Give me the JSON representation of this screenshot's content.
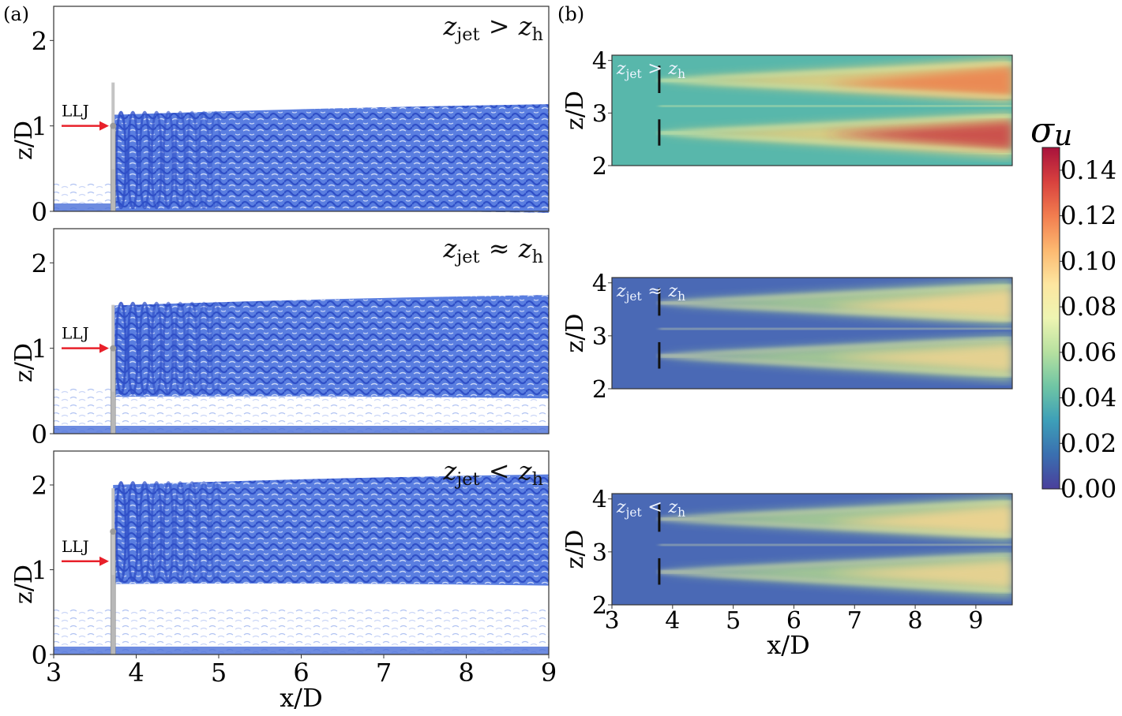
{
  "panel_a": {
    "label": "(a)",
    "xlabel": "x/D",
    "ylabel": "z/D",
    "xticks": [
      "3",
      "4",
      "5",
      "6",
      "7",
      "8",
      "9"
    ],
    "yticks": [
      "0",
      "1",
      "2"
    ],
    "xlim": [
      3,
      9
    ],
    "ylim": [
      0,
      2.4
    ],
    "inflow_label": "LLJ",
    "turbine_x": 3.72,
    "cases": [
      {
        "title": "z_jet > z_h",
        "main": "z",
        "sub": "jet",
        "op": ">",
        "rhs": "z",
        "rhs_sub": "h",
        "wake_top": 1.18,
        "wake_bottom": 0.02,
        "hub": 1.0,
        "inflow_z": 1.0
      },
      {
        "title": "z_jet ≈ z_h",
        "main": "z",
        "sub": "jet",
        "op": "≈",
        "rhs": "z",
        "rhs_sub": "h",
        "wake_top": 1.55,
        "wake_bottom": 0.45,
        "hub": 1.0,
        "inflow_z": 1.0
      },
      {
        "title": "z_jet < z_h",
        "main": "z",
        "sub": "jet",
        "op": "<",
        "rhs": "z",
        "rhs_sub": "h",
        "wake_top": 2.05,
        "wake_bottom": 0.85,
        "hub": 1.45,
        "inflow_z": 1.1
      }
    ]
  },
  "panel_b": {
    "label": "(b)",
    "xlabel": "x/D",
    "ylabel": "z/D",
    "xticks": [
      "3",
      "4",
      "5",
      "6",
      "7",
      "8",
      "9"
    ],
    "yticks": [
      "2",
      "3",
      "4"
    ],
    "xlim": [
      3,
      9.6
    ],
    "ylim": [
      2,
      4.1
    ],
    "turbine_x": 3.78,
    "cases": [
      {
        "main": "z",
        "sub": "jet",
        "op": ">",
        "rhs": "z",
        "rhs_sub": "h"
      },
      {
        "main": "z",
        "sub": "jet",
        "op": "≈",
        "rhs": "z",
        "rhs_sub": "h"
      },
      {
        "main": "z",
        "sub": "jet",
        "op": "<",
        "rhs": "z",
        "rhs_sub": "h"
      }
    ]
  },
  "colorbar": {
    "label": "σ",
    "label_sub": "u",
    "ticks": [
      "0.14",
      "0.12",
      "0.10",
      "0.08",
      "0.06",
      "0.04",
      "0.02",
      "0.00"
    ],
    "range": [
      0.0,
      0.15
    ],
    "colors": [
      "#4a3f9c",
      "#3a6fb0",
      "#3d9fb8",
      "#6fc5a4",
      "#b6e0a0",
      "#eef5b2",
      "#fde6a0",
      "#fcb870",
      "#f27d4f",
      "#d8413e",
      "#a8123c"
    ]
  }
}
